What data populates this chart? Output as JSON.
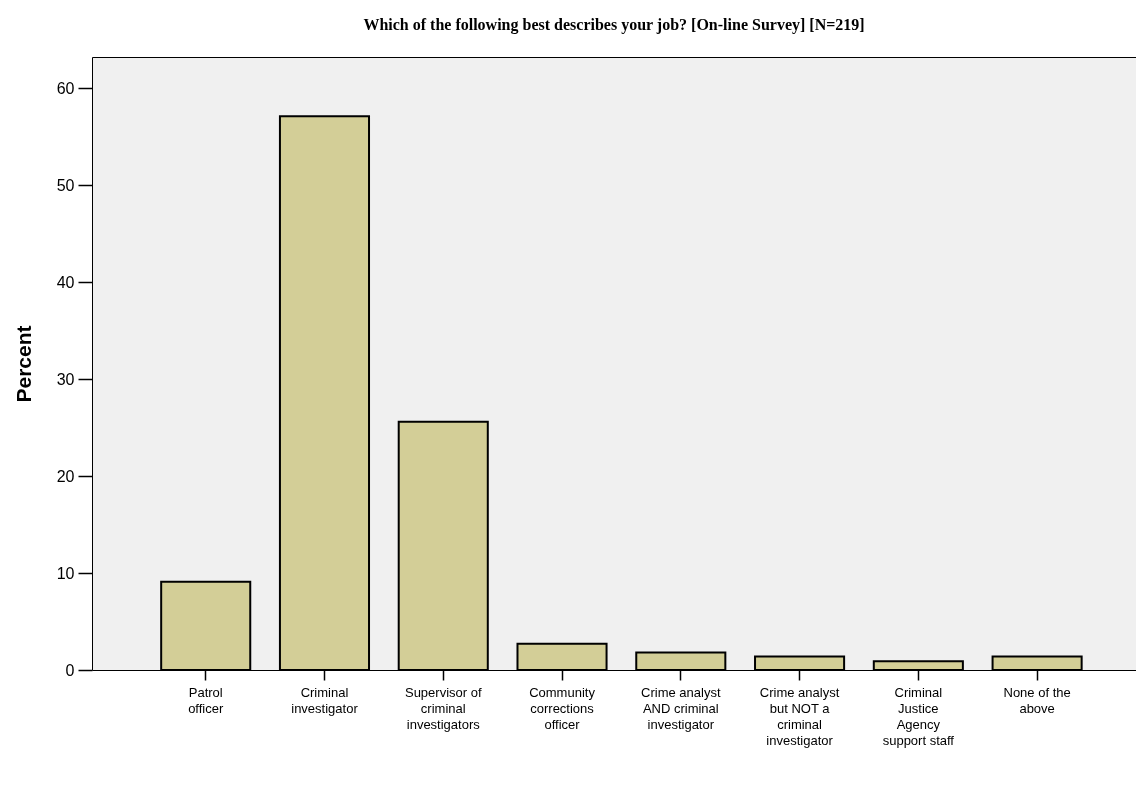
{
  "chart_data": {
    "type": "bar",
    "title": "Which of the following best describes your job?  [On-line Survey] [N=219]",
    "ylabel": "Percent",
    "categories": [
      "Patrol officer",
      "Criminal investigator",
      "Supervisor of criminal investigators",
      "Community corrections officer",
      "Crime analyst AND criminal investigator",
      "Crime analyst but NOT a criminal investigator",
      "Criminal Justice Agency support staff",
      "None of the above"
    ],
    "values": [
      9.1,
      57.1,
      25.6,
      2.7,
      1.8,
      1.4,
      0.9,
      1.4
    ],
    "color": "#d3ce97",
    "ylim": [
      0,
      63.2
    ],
    "yticks": [
      0,
      10,
      20,
      30,
      40,
      50,
      60
    ],
    "grid": false
  }
}
